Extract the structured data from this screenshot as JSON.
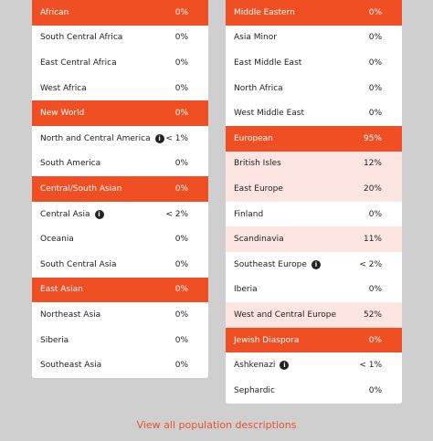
{
  "columns": [
    {
      "groups": [
        {
          "name": "African",
          "value": "0%",
          "rows": [
            {
              "name": "South Central Africa",
              "value": "0%"
            },
            {
              "name": "East Central Africa",
              "value": "0%"
            },
            {
              "name": "West Africa",
              "value": "0%"
            }
          ]
        },
        {
          "name": "New World",
          "value": "0%",
          "rows": [
            {
              "name": "North and Central America",
              "value": "< 1%",
              "info": true
            },
            {
              "name": "South America",
              "value": "0%"
            }
          ]
        },
        {
          "name": "Central/South Asian",
          "value": "0%",
          "rows": [
            {
              "name": "Central Asia",
              "value": "< 2%",
              "info": true
            },
            {
              "name": "Oceania",
              "value": "0%"
            },
            {
              "name": "South Central Asia",
              "value": "0%"
            }
          ]
        },
        {
          "name": "East Asian",
          "value": "0%",
          "rows": [
            {
              "name": "Northeast Asia",
              "value": "0%"
            },
            {
              "name": "Siberia",
              "value": "0%"
            },
            {
              "name": "Southeast Asia",
              "value": "0%"
            }
          ]
        }
      ]
    },
    {
      "groups": [
        {
          "name": "Middle Eastern",
          "value": "0%",
          "rows": [
            {
              "name": "Asia Minor",
              "value": "0%"
            },
            {
              "name": "East Middle East",
              "value": "0%"
            },
            {
              "name": "North Africa",
              "value": "0%"
            },
            {
              "name": "West Middle East",
              "value": "0%"
            }
          ]
        },
        {
          "name": "European",
          "value": "95%",
          "rows": [
            {
              "name": "British Isles",
              "value": "12%",
              "highlight": true
            },
            {
              "name": "East Europe",
              "value": "20%",
              "highlight": true
            },
            {
              "name": "Finland",
              "value": "0%"
            },
            {
              "name": "Scandinavia",
              "value": "11%",
              "highlight": true
            },
            {
              "name": "Southeast Europe",
              "value": "< 2%",
              "info": true
            },
            {
              "name": "Iberia",
              "value": "0%"
            },
            {
              "name": "West and Central Europe",
              "value": "52%",
              "highlight": true
            }
          ]
        },
        {
          "name": "Jewish Diaspora",
          "value": "0%",
          "rows": [
            {
              "name": "Ashkenazi",
              "value": "< 1%",
              "info": true
            },
            {
              "name": "Sephardic",
              "value": "0%"
            }
          ]
        }
      ]
    }
  ],
  "footer_link": "View all population descriptions"
}
